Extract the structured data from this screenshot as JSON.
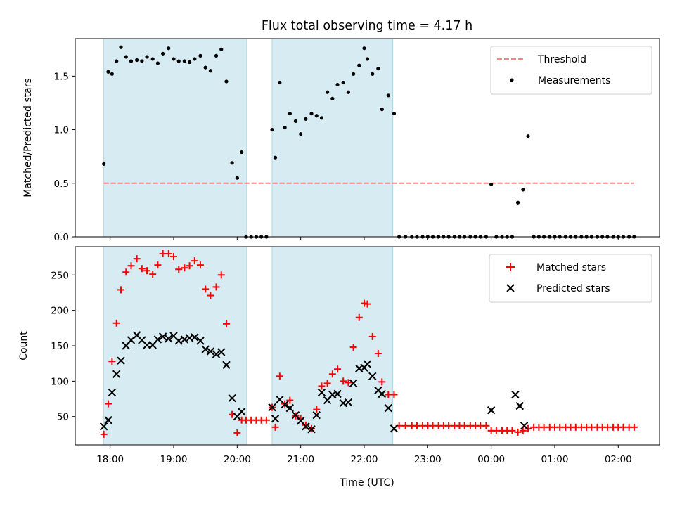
{
  "figure": {
    "title": "Flux total observing time = 4.17 h",
    "xlabel": "Time (UTC)",
    "xticks": [
      "18:00",
      "19:00",
      "20:00",
      "21:00",
      "22:00",
      "23:00",
      "00:00",
      "01:00",
      "02:00"
    ],
    "colors": {
      "shade": "#add8e6",
      "threshold": "#ff7f7f",
      "matched": "#ff0000",
      "predicted": "#000000",
      "measurement": "#000000"
    },
    "shaded_intervals_hours": [
      [
        17.9,
        20.15
      ],
      [
        20.55,
        22.45
      ]
    ]
  },
  "chart_data": [
    {
      "type": "scatter",
      "panel": "top",
      "title": "Flux total observing time = 4.17 h",
      "xlabel": "",
      "ylabel": "Matched/Predicted stars",
      "xlim": [
        17.45,
        26.65
      ],
      "ylim": [
        0.0,
        1.85
      ],
      "yticks": [
        "0.0",
        "0.5",
        "1.0",
        "1.5"
      ],
      "ytick_values": [
        0.0,
        0.5,
        1.0,
        1.5
      ],
      "grid": false,
      "legend_position": "top-right",
      "legend": [
        "Threshold",
        "Measurements"
      ],
      "threshold": {
        "name": "Threshold",
        "value": 0.5,
        "x_range": [
          17.9,
          26.25
        ]
      },
      "series": [
        {
          "name": "Measurements",
          "x": [
            17.9,
            17.97,
            18.03,
            18.1,
            18.17,
            18.25,
            18.33,
            18.42,
            18.5,
            18.58,
            18.67,
            18.75,
            18.83,
            18.92,
            19.0,
            19.08,
            19.17,
            19.25,
            19.33,
            19.42,
            19.5,
            19.58,
            19.67,
            19.75,
            19.83,
            19.92,
            20.0,
            20.07,
            20.14,
            20.22,
            20.3,
            20.38,
            20.46,
            20.55,
            20.6,
            20.67,
            20.75,
            20.83,
            20.92,
            21.0,
            21.08,
            21.17,
            21.25,
            21.33,
            21.42,
            21.5,
            21.58,
            21.67,
            21.75,
            21.83,
            21.92,
            22.0,
            22.05,
            22.13,
            22.22,
            22.28,
            22.38,
            22.47,
            22.55,
            22.65,
            22.75,
            22.83,
            22.92,
            23.0,
            23.08,
            23.17,
            23.25,
            23.33,
            23.42,
            23.5,
            23.58,
            23.67,
            23.75,
            23.83,
            23.92,
            24.0,
            24.08,
            24.17,
            24.25,
            24.33,
            24.42,
            24.5,
            24.58,
            24.67,
            24.75,
            24.83,
            24.92,
            25.0,
            25.08,
            25.17,
            25.25,
            25.33,
            25.42,
            25.5,
            25.58,
            25.67,
            25.75,
            25.83,
            25.92,
            26.0,
            26.08,
            26.17,
            26.25
          ],
          "values": [
            0.68,
            1.54,
            1.52,
            1.64,
            1.77,
            1.68,
            1.64,
            1.65,
            1.64,
            1.68,
            1.66,
            1.62,
            1.71,
            1.76,
            1.66,
            1.64,
            1.64,
            1.63,
            1.66,
            1.69,
            1.58,
            1.55,
            1.69,
            1.75,
            1.45,
            0.69,
            0.55,
            0.79,
            0.0,
            0.0,
            0.0,
            0.0,
            0.0,
            1.0,
            0.74,
            1.44,
            1.02,
            1.15,
            1.08,
            0.96,
            1.1,
            1.15,
            1.13,
            1.11,
            1.35,
            1.29,
            1.42,
            1.44,
            1.35,
            1.52,
            1.6,
            1.76,
            1.66,
            1.52,
            1.57,
            1.19,
            1.32,
            1.15,
            0.0,
            0.0,
            0.0,
            0.0,
            0.0,
            0.0,
            0.0,
            0.0,
            0.0,
            0.0,
            0.0,
            0.0,
            0.0,
            0.0,
            0.0,
            0.0,
            0.0,
            0.49,
            0.0,
            0.0,
            0.0,
            0.0,
            0.32,
            0.44,
            0.94,
            0.0,
            0.0,
            0.0,
            0.0,
            0.0,
            0.0,
            0.0,
            0.0,
            0.0,
            0.0,
            0.0,
            0.0,
            0.0,
            0.0,
            0.0,
            0.0,
            0.0,
            0.0,
            0.0,
            0.0
          ]
        }
      ]
    },
    {
      "type": "scatter",
      "panel": "bottom",
      "xlabel": "Time (UTC)",
      "ylabel": "Count",
      "xlim": [
        17.45,
        26.65
      ],
      "ylim": [
        10,
        290
      ],
      "yticks": [
        "50",
        "100",
        "150",
        "200",
        "250"
      ],
      "ytick_values": [
        50,
        100,
        150,
        200,
        250
      ],
      "grid": false,
      "legend_position": "top-right",
      "legend": [
        "Matched stars",
        "Predicted stars"
      ],
      "series": [
        {
          "name": "Matched stars",
          "marker": "+",
          "x": [
            17.9,
            17.97,
            18.03,
            18.1,
            18.17,
            18.25,
            18.33,
            18.42,
            18.5,
            18.58,
            18.67,
            18.75,
            18.83,
            18.92,
            19.0,
            19.08,
            19.17,
            19.25,
            19.33,
            19.42,
            19.5,
            19.58,
            19.67,
            19.75,
            19.83,
            19.92,
            20.0,
            20.07,
            20.14,
            20.22,
            20.3,
            20.38,
            20.46,
            20.55,
            20.6,
            20.67,
            20.75,
            20.83,
            20.92,
            21.0,
            21.08,
            21.17,
            21.25,
            21.33,
            21.42,
            21.5,
            21.58,
            21.67,
            21.75,
            21.83,
            21.92,
            22.0,
            22.05,
            22.13,
            22.22,
            22.28,
            22.38,
            22.47,
            22.55,
            22.65,
            22.75,
            22.83,
            22.92,
            23.0,
            23.08,
            23.17,
            23.25,
            23.33,
            23.42,
            23.5,
            23.58,
            23.67,
            23.75,
            23.83,
            23.92,
            24.0,
            24.08,
            24.17,
            24.25,
            24.33,
            24.42,
            24.5,
            24.58,
            24.67,
            24.75,
            24.83,
            24.92,
            25.0,
            25.08,
            25.17,
            25.25,
            25.33,
            25.42,
            25.5,
            25.58,
            25.67,
            25.75,
            25.83,
            25.92,
            26.0,
            26.08,
            26.17,
            26.25
          ],
          "values": [
            25,
            68,
            128,
            182,
            229,
            254,
            263,
            273,
            259,
            256,
            251,
            264,
            280,
            280,
            276,
            258,
            260,
            263,
            270,
            264,
            230,
            221,
            233,
            250,
            181,
            53,
            27,
            45,
            45,
            45,
            45,
            45,
            45,
            63,
            35,
            107,
            68,
            73,
            51,
            47,
            38,
            33,
            60,
            93,
            97,
            110,
            117,
            100,
            98,
            148,
            190,
            210,
            209,
            163,
            139,
            99,
            81,
            81,
            37,
            37,
            37,
            37,
            37,
            37,
            37,
            37,
            37,
            37,
            37,
            37,
            37,
            37,
            37,
            37,
            37,
            30,
            30,
            30,
            30,
            30,
            28,
            30,
            33,
            35,
            35,
            35,
            35,
            35,
            35,
            35,
            35,
            35,
            35,
            35,
            35,
            35,
            35,
            35,
            35,
            35,
            35,
            35,
            35
          ]
        },
        {
          "name": "Predicted stars",
          "marker": "x",
          "x": [
            17.9,
            17.97,
            18.03,
            18.1,
            18.17,
            18.25,
            18.33,
            18.42,
            18.5,
            18.58,
            18.67,
            18.75,
            18.83,
            18.92,
            19.0,
            19.08,
            19.17,
            19.25,
            19.33,
            19.42,
            19.5,
            19.58,
            19.67,
            19.75,
            19.83,
            19.92,
            20.0,
            20.07,
            20.55,
            20.6,
            20.67,
            20.75,
            20.83,
            20.92,
            21.0,
            21.08,
            21.17,
            21.25,
            21.33,
            21.42,
            21.5,
            21.58,
            21.67,
            21.75,
            21.83,
            21.92,
            22.0,
            22.05,
            22.13,
            22.22,
            22.28,
            22.38,
            22.47,
            24.0,
            24.38,
            24.45,
            24.52
          ],
          "values": [
            36,
            45,
            84,
            110,
            129,
            150,
            158,
            165,
            158,
            151,
            151,
            159,
            163,
            160,
            164,
            157,
            159,
            161,
            162,
            157,
            145,
            142,
            138,
            141,
            123,
            76,
            50,
            57,
            63,
            47,
            74,
            67,
            62,
            52,
            44,
            36,
            32,
            52,
            84,
            73,
            81,
            82,
            69,
            70,
            97,
            118,
            119,
            124,
            107,
            87,
            82,
            62,
            33,
            59,
            81,
            65,
            37
          ]
        }
      ]
    }
  ]
}
